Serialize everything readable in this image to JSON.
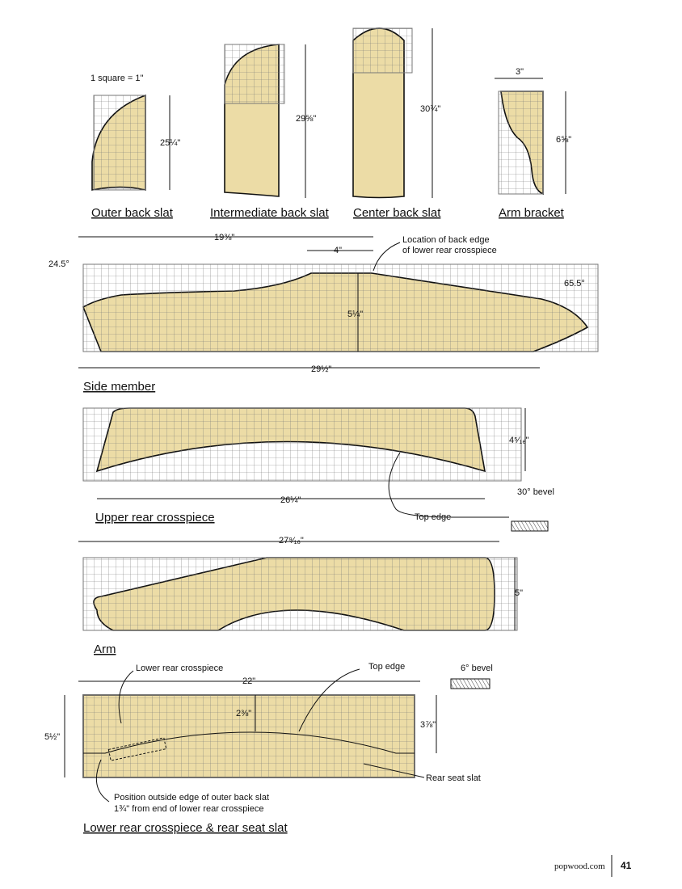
{
  "scale_note": "1 square = 1\"",
  "outer_back_slat": {
    "label": "Outer back slat",
    "height": "25¼\""
  },
  "intermediate_back_slat": {
    "label": "Intermediate back slat",
    "height": "29⅝\""
  },
  "center_back_slat": {
    "label": "Center back slat",
    "height": "30¾\""
  },
  "arm_bracket": {
    "label": "Arm bracket",
    "width": "3\"",
    "height": "6⅝\""
  },
  "side_member": {
    "label": "Side member",
    "top_length": "19⅜\"",
    "flat": "4\"",
    "note_line1": "Location of back edge",
    "note_line2": "of lower rear crosspiece",
    "angle_left": "24.5°",
    "angle_right": "65.5°",
    "height": "5¼\"",
    "length": "29½\""
  },
  "upper_rear_crosspiece": {
    "label": "Upper rear crosspiece",
    "height": "4⁵⁄₁₆\"",
    "length": "26¼\"",
    "top_edge": "Top edge",
    "bevel": "30° bevel"
  },
  "arm": {
    "label": "Arm",
    "length": "27⁹⁄₁₆\"",
    "height": "5\""
  },
  "lower_rear_crosspiece": {
    "label": "Lower rear crosspiece & rear seat slat",
    "callout": "Lower rear crosspiece",
    "length": "22\"",
    "top_edge": "Top edge",
    "bevel": "6° bevel",
    "center_height": "2⅜\"",
    "end_height": "3⅞\"",
    "total_height": "5½\"",
    "seat_slat": "Rear seat slat",
    "position_line1": "Position outside edge of outer back slat",
    "position_line2": "1¾\" from end of lower rear crosspiece"
  },
  "footer": {
    "site": "popwood.com",
    "page": "41"
  }
}
